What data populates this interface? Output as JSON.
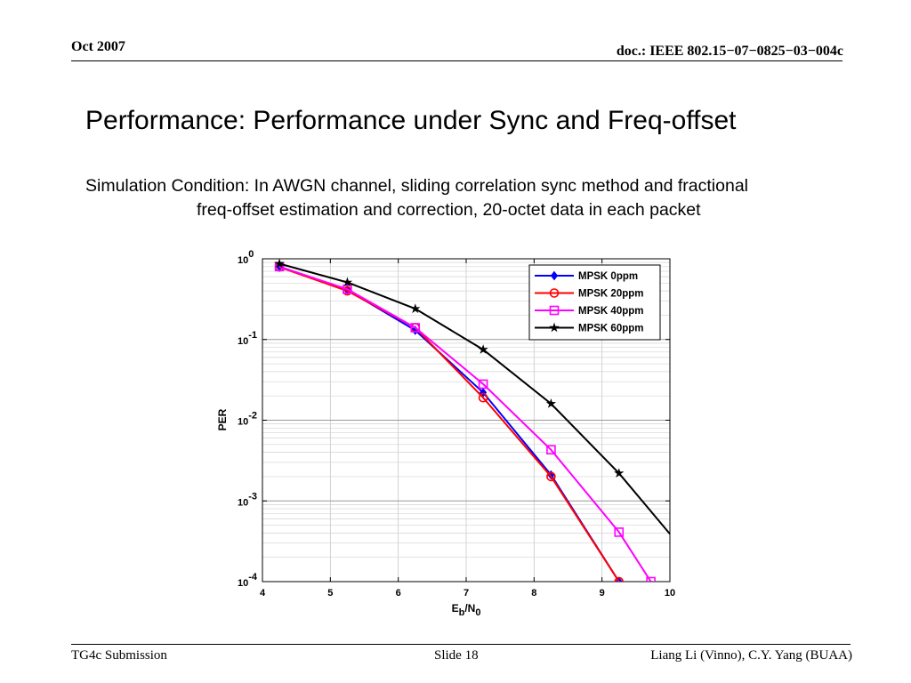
{
  "header": {
    "date": "Oct 2007",
    "doc_id": "doc.: IEEE 802.15−07−0825−03−004c"
  },
  "slide": {
    "title": "Performance: Performance under Sync and Freq-offset",
    "subtitle_line1": "Simulation Condition: In AWGN channel, sliding correlation sync method and fractional",
    "subtitle_line2": "freq-offset estimation and correction, 20-octet data in each packet"
  },
  "footer": {
    "left": "TG4c Submission",
    "center": "Slide 18",
    "right": "Liang Li (Vinno), C.Y. Yang (BUAA)"
  },
  "colors": {
    "MPSK 0ppm": "#0000ff",
    "MPSK 20ppm": "#ff0000",
    "MPSK 40ppm": "#ff00ff",
    "MPSK 60ppm": "#000000"
  },
  "chart_data": {
    "type": "line",
    "title": "",
    "xlabel": "Eb/N0",
    "ylabel": "PER",
    "xlim": [
      4,
      10
    ],
    "ylim": [
      0.0001,
      1
    ],
    "yscale": "log",
    "grid": true,
    "legend_position": "top-right",
    "x_ticks": [
      "4",
      "5",
      "6",
      "7",
      "8",
      "9",
      "10"
    ],
    "y_ticks": [
      "10^0",
      "10^-1",
      "10^-2",
      "10^-3",
      "10^-4"
    ],
    "series": [
      {
        "name": "MPSK 0ppm",
        "marker": "diamond",
        "color": "#0000ff",
        "x": [
          4.25,
          5.25,
          6.25,
          7.25,
          8.25,
          9.25
        ],
        "y": [
          0.8,
          0.41,
          0.13,
          0.022,
          0.0021,
          0.0001
        ]
      },
      {
        "name": "MPSK 20ppm",
        "marker": "circle",
        "color": "#ff0000",
        "x": [
          4.25,
          5.25,
          6.25,
          7.25,
          8.25,
          9.25
        ],
        "y": [
          0.79,
          0.4,
          0.14,
          0.019,
          0.002,
          0.0001
        ]
      },
      {
        "name": "MPSK 40ppm",
        "marker": "square",
        "color": "#ff00ff",
        "x": [
          4.25,
          5.25,
          6.25,
          7.25,
          8.25,
          9.25,
          9.72
        ],
        "y": [
          0.8,
          0.42,
          0.14,
          0.028,
          0.0043,
          0.00041,
          0.0001
        ]
      },
      {
        "name": "MPSK 60ppm",
        "marker": "star",
        "color": "#000000",
        "x": [
          4.25,
          5.25,
          6.25,
          7.25,
          8.25,
          9.25,
          10
        ],
        "y": [
          0.87,
          0.51,
          0.24,
          0.075,
          0.016,
          0.0022,
          0.00039
        ]
      }
    ]
  }
}
